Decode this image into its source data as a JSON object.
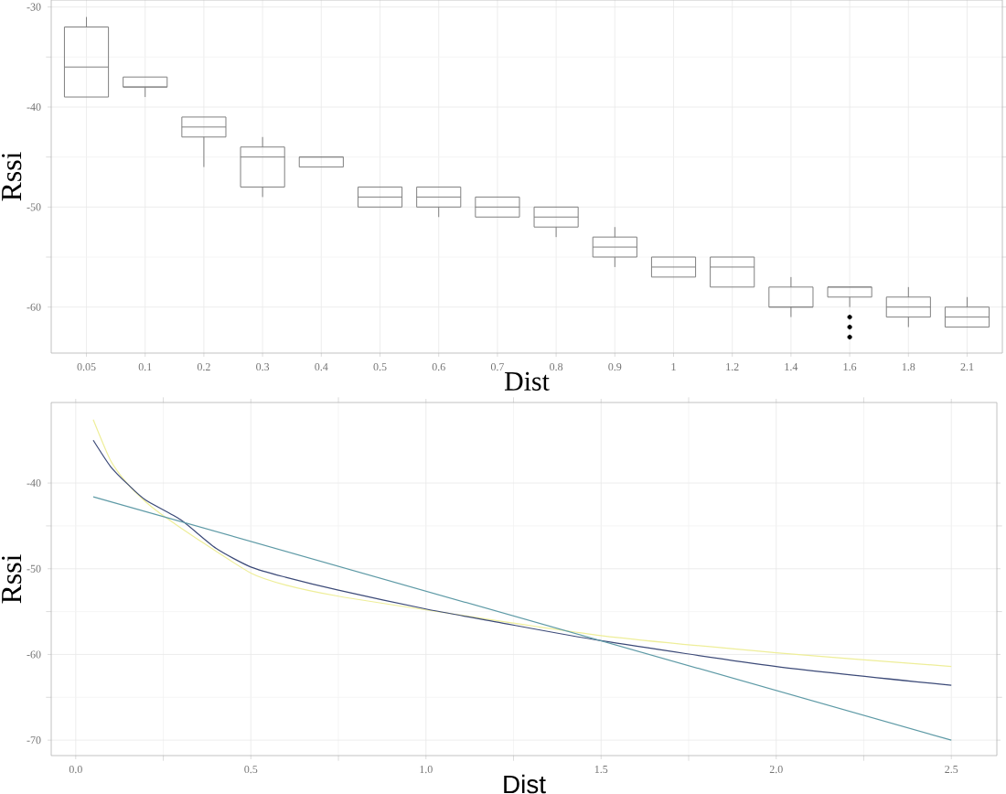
{
  "chart_data": [
    {
      "type": "box",
      "xlabel": "Dist",
      "ylabel": "Rssi",
      "color": "#808080",
      "grid": true,
      "categories": [
        "0.05",
        "0.1",
        "0.2",
        "0.3",
        "0.4",
        "0.5",
        "0.6",
        "0.7",
        "0.8",
        "0.9",
        "1",
        "1.2",
        "1.4",
        "1.6",
        "1.8",
        "2.1"
      ],
      "boxes": [
        {
          "low": -39,
          "q1": -39,
          "median": -36,
          "q3": -32,
          "high": -31
        },
        {
          "low": -39,
          "q1": -38,
          "median": -38,
          "q3": -37,
          "high": -37
        },
        {
          "low": -46,
          "q1": -43,
          "median": -42,
          "q3": -41,
          "high": -41
        },
        {
          "low": -49,
          "q1": -48,
          "median": -45,
          "q3": -44,
          "high": -43
        },
        {
          "low": -46,
          "q1": -46,
          "median": -45,
          "q3": -45,
          "high": -45
        },
        {
          "low": -50,
          "q1": -50,
          "median": -49,
          "q3": -48,
          "high": -48
        },
        {
          "low": -51,
          "q1": -50,
          "median": -49,
          "q3": -48,
          "high": -48
        },
        {
          "low": -51,
          "q1": -51,
          "median": -50,
          "q3": -49,
          "high": -49
        },
        {
          "low": -53,
          "q1": -52,
          "median": -51,
          "q3": -50,
          "high": -50
        },
        {
          "low": -56,
          "q1": -55,
          "median": -54,
          "q3": -53,
          "high": -52
        },
        {
          "low": -57,
          "q1": -57,
          "median": -56,
          "q3": -55,
          "high": -55
        },
        {
          "low": -58,
          "q1": -58,
          "median": -56,
          "q3": -55,
          "high": -55
        },
        {
          "low": -61,
          "q1": -60,
          "median": -60,
          "q3": -58,
          "high": -57
        },
        {
          "low": -60,
          "q1": -59,
          "median": -58,
          "q3": -58,
          "high": -58,
          "outliers": [
            -61,
            -62,
            -63
          ]
        },
        {
          "low": -62,
          "q1": -61,
          "median": -60,
          "q3": -59,
          "high": -58
        },
        {
          "low": -62,
          "q1": -62,
          "median": -61,
          "q3": -60,
          "high": -59
        }
      ],
      "ylim": [
        -64.6,
        -29.3
      ],
      "yticks": [
        -60,
        -50,
        -40,
        -30
      ]
    },
    {
      "type": "line",
      "xlabel": "Dist",
      "ylabel": "Rssi",
      "grid": true,
      "series": [
        {
          "color": "#eeee99",
          "x": [
            0.05,
            0.1,
            0.15,
            0.2,
            0.25,
            0.35,
            0.5,
            0.6,
            0.75,
            1.0,
            1.5,
            2.0,
            2.5
          ],
          "values": [
            -32.6,
            -37.4,
            -40.2,
            -42.2,
            -43.8,
            -46.6,
            -50.5,
            -51.9,
            -53.2,
            -54.8,
            -57.8,
            -59.8,
            -61.4
          ]
        },
        {
          "color": "#3c4a78",
          "x": [
            0.05,
            0.1,
            0.15,
            0.2,
            0.3,
            0.4,
            0.5,
            0.6,
            0.75,
            1.0,
            1.2,
            1.5,
            2.0,
            2.5
          ],
          "values": [
            -35.0,
            -38.1,
            -40.2,
            -42.0,
            -44.3,
            -47.6,
            -49.8,
            -51.0,
            -52.5,
            -54.7,
            -56.2,
            -58.4,
            -61.4,
            -63.6
          ]
        },
        {
          "color": "#5e9aa6",
          "x": [
            0.05,
            2.5
          ],
          "values": [
            -41.6,
            -70.0
          ]
        }
      ],
      "xlim": [
        -0.07,
        2.63
      ],
      "ylim": [
        -71.8,
        -30.6
      ],
      "xticks": [
        {
          "value": 0,
          "label": "0.0"
        },
        {
          "value": 0.5,
          "label": "0.5"
        },
        {
          "value": 1,
          "label": "1.0"
        },
        {
          "value": 1.5,
          "label": "1.5"
        },
        {
          "value": 2,
          "label": "2.0"
        },
        {
          "value": 2.5,
          "label": "2.5"
        }
      ],
      "yticks": [
        -70,
        -60,
        -50,
        -40
      ]
    }
  ]
}
